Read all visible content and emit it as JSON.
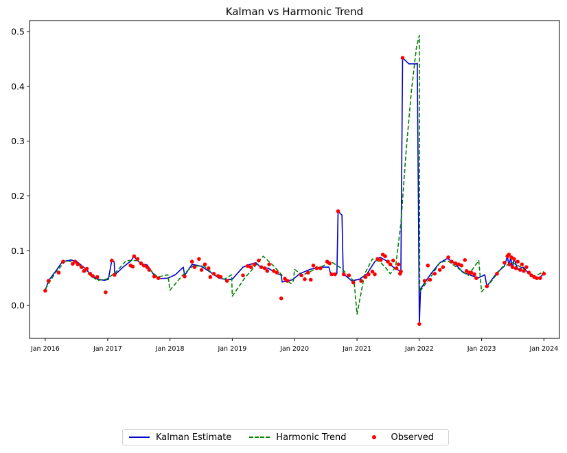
{
  "chart_data": {
    "type": "line",
    "title": "Kalman vs Harmonic Trend",
    "xlabel": "",
    "ylabel": "",
    "xlim": [
      "2015-10-01",
      "2024-04-01"
    ],
    "ylim": [
      -0.06,
      0.52
    ],
    "yticks": [
      0.0,
      0.1,
      0.2,
      0.3,
      0.4,
      0.5
    ],
    "ytick_labels": [
      "0.0",
      "0.1",
      "0.2",
      "0.3",
      "0.4",
      "0.5"
    ],
    "xticks": [
      "2016-01-01",
      "2017-01-01",
      "2018-01-01",
      "2019-01-01",
      "2020-01-01",
      "2021-01-01",
      "2022-01-01",
      "2023-01-01",
      "2024-01-01"
    ],
    "xtick_labels": [
      "Jan 2016",
      "Jan 2017",
      "Jan 2018",
      "Jan 2019",
      "Jan 2020",
      "Jan 2021",
      "Jan 2022",
      "Jan 2023",
      "Jan 2024"
    ],
    "grid": false,
    "legend_position": "bottom-center",
    "series": [
      {
        "name": "Kalman Estimate",
        "style": "solid",
        "color": "#0000cc",
        "points": [
          [
            "2016-01-01",
            0.027
          ],
          [
            "2016-01-20",
            0.045
          ],
          [
            "2016-03-15",
            0.068
          ],
          [
            "2016-04-10",
            0.08
          ],
          [
            "2016-06-01",
            0.083
          ],
          [
            "2016-07-05",
            0.08
          ],
          [
            "2016-08-20",
            0.068
          ],
          [
            "2016-09-20",
            0.058
          ],
          [
            "2016-11-01",
            0.048
          ],
          [
            "2016-12-15",
            0.046
          ],
          [
            "2017-01-05",
            0.048
          ],
          [
            "2017-01-25",
            0.082
          ],
          [
            "2017-02-08",
            0.08
          ],
          [
            "2017-02-12",
            0.056
          ],
          [
            "2017-04-01",
            0.07
          ],
          [
            "2017-05-20",
            0.082
          ],
          [
            "2017-06-01",
            0.09
          ],
          [
            "2017-07-15",
            0.076
          ],
          [
            "2017-08-20",
            0.074
          ],
          [
            "2017-10-01",
            0.055
          ],
          [
            "2017-11-01",
            0.049
          ],
          [
            "2017-12-20",
            0.05
          ],
          [
            "2018-02-01",
            0.056
          ],
          [
            "2018-03-20",
            0.07
          ],
          [
            "2018-03-28",
            0.055
          ],
          [
            "2018-05-10",
            0.075
          ],
          [
            "2018-07-01",
            0.072
          ],
          [
            "2018-08-20",
            0.062
          ],
          [
            "2018-10-15",
            0.05
          ],
          [
            "2018-12-01",
            0.047
          ],
          [
            "2019-01-01",
            0.048
          ],
          [
            "2019-03-05",
            0.07
          ],
          [
            "2019-04-15",
            0.075
          ],
          [
            "2019-05-20",
            0.078
          ],
          [
            "2019-06-15",
            0.07
          ],
          [
            "2019-08-01",
            0.068
          ],
          [
            "2019-09-10",
            0.06
          ],
          [
            "2019-10-15",
            0.055
          ],
          [
            "2019-10-20",
            0.043
          ],
          [
            "2019-12-20",
            0.047
          ],
          [
            "2020-02-01",
            0.058
          ],
          [
            "2020-04-01",
            0.066
          ],
          [
            "2020-06-01",
            0.07
          ],
          [
            "2020-07-20",
            0.07
          ],
          [
            "2020-08-01",
            0.056
          ],
          [
            "2020-09-05",
            0.058
          ],
          [
            "2020-09-12",
            0.172
          ],
          [
            "2020-10-05",
            0.165
          ],
          [
            "2020-10-12",
            0.058
          ],
          [
            "2020-12-01",
            0.045
          ],
          [
            "2021-01-15",
            0.048
          ],
          [
            "2021-03-01",
            0.058
          ],
          [
            "2021-04-15",
            0.08
          ],
          [
            "2021-05-15",
            0.088
          ],
          [
            "2021-06-20",
            0.082
          ],
          [
            "2021-08-01",
            0.07
          ],
          [
            "2021-09-15",
            0.062
          ],
          [
            "2021-09-25",
            0.452
          ],
          [
            "2021-11-01",
            0.441
          ],
          [
            "2021-12-15",
            0.441
          ],
          [
            "2021-12-20",
            0.442
          ],
          [
            "2022-01-01",
            -0.034
          ],
          [
            "2022-01-08",
            0.03
          ],
          [
            "2022-02-15",
            0.048
          ],
          [
            "2022-03-15",
            0.06
          ],
          [
            "2022-05-01",
            0.078
          ],
          [
            "2022-06-15",
            0.086
          ],
          [
            "2022-08-01",
            0.075
          ],
          [
            "2022-09-15",
            0.06
          ],
          [
            "2022-11-01",
            0.055
          ],
          [
            "2022-12-10",
            0.05
          ],
          [
            "2023-01-20",
            0.056
          ],
          [
            "2023-02-01",
            0.035
          ],
          [
            "2023-04-01",
            0.06
          ],
          [
            "2023-05-15",
            0.072
          ],
          [
            "2023-06-01",
            0.09
          ],
          [
            "2023-06-10",
            0.072
          ],
          [
            "2023-06-20",
            0.088
          ],
          [
            "2023-07-01",
            0.068
          ],
          [
            "2023-07-10",
            0.085
          ],
          [
            "2023-08-01",
            0.066
          ],
          [
            "2023-09-01",
            0.07
          ],
          [
            "2023-10-15",
            0.055
          ],
          [
            "2023-12-01",
            0.05
          ],
          [
            "2024-01-01",
            0.058
          ]
        ]
      },
      {
        "name": "Harmonic Trend",
        "style": "dashed",
        "color": "#008000",
        "points": [
          [
            "2016-01-01",
            0.03
          ],
          [
            "2016-03-01",
            0.06
          ],
          [
            "2016-05-01",
            0.082
          ],
          [
            "2016-07-01",
            0.078
          ],
          [
            "2016-09-01",
            0.06
          ],
          [
            "2016-11-01",
            0.046
          ],
          [
            "2016-12-25",
            0.048
          ],
          [
            "2017-02-15",
            0.06
          ],
          [
            "2017-04-20",
            0.082
          ],
          [
            "2017-06-20",
            0.082
          ],
          [
            "2017-08-20",
            0.07
          ],
          [
            "2017-10-20",
            0.052
          ],
          [
            "2017-12-20",
            0.056
          ],
          [
            "2018-01-01",
            0.028
          ],
          [
            "2018-03-15",
            0.055
          ],
          [
            "2018-05-15",
            0.072
          ],
          [
            "2018-07-20",
            0.072
          ],
          [
            "2018-09-20",
            0.055
          ],
          [
            "2018-11-15",
            0.048
          ],
          [
            "2018-12-28",
            0.056
          ],
          [
            "2019-01-01",
            0.017
          ],
          [
            "2019-03-15",
            0.05
          ],
          [
            "2019-05-15",
            0.072
          ],
          [
            "2019-07-01",
            0.09
          ],
          [
            "2019-09-01",
            0.072
          ],
          [
            "2019-10-20",
            0.055
          ],
          [
            "2019-12-10",
            0.04
          ],
          [
            "2019-12-25",
            0.045
          ],
          [
            "2020-01-01",
            0.066
          ],
          [
            "2020-02-15",
            0.055
          ],
          [
            "2020-04-01",
            0.062
          ],
          [
            "2020-06-15",
            0.072
          ],
          [
            "2020-08-01",
            0.08
          ],
          [
            "2020-10-01",
            0.068
          ],
          [
            "2020-12-15",
            0.044
          ],
          [
            "2021-01-01",
            -0.016
          ],
          [
            "2021-02-15",
            0.058
          ],
          [
            "2021-04-01",
            0.085
          ],
          [
            "2021-05-15",
            0.08
          ],
          [
            "2021-06-15",
            0.07
          ],
          [
            "2021-07-15",
            0.058
          ],
          [
            "2021-08-15",
            0.07
          ],
          [
            "2021-09-15",
            0.15
          ],
          [
            "2021-10-15",
            0.28
          ],
          [
            "2021-11-15",
            0.39
          ],
          [
            "2021-12-15",
            0.47
          ],
          [
            "2022-01-01",
            0.493
          ],
          [
            "2022-01-03",
            0.025
          ],
          [
            "2022-03-15",
            0.055
          ],
          [
            "2022-05-01",
            0.078
          ],
          [
            "2022-06-15",
            0.082
          ],
          [
            "2022-08-15",
            0.068
          ],
          [
            "2022-10-15",
            0.055
          ],
          [
            "2022-12-15",
            0.082
          ],
          [
            "2023-01-01",
            0.025
          ],
          [
            "2023-03-01",
            0.045
          ],
          [
            "2023-05-01",
            0.07
          ],
          [
            "2023-07-01",
            0.078
          ],
          [
            "2023-09-01",
            0.068
          ],
          [
            "2023-11-01",
            0.052
          ],
          [
            "2024-01-01",
            0.062
          ]
        ]
      },
      {
        "name": "Observed",
        "style": "markers",
        "color": "#ff0000",
        "points": [
          [
            "2016-01-01",
            0.027
          ],
          [
            "2016-01-20",
            0.045
          ],
          [
            "2016-03-20",
            0.06
          ],
          [
            "2016-04-15",
            0.08
          ],
          [
            "2016-06-10",
            0.076
          ],
          [
            "2016-06-25",
            0.08
          ],
          [
            "2016-07-10",
            0.075
          ],
          [
            "2016-08-01",
            0.07
          ],
          [
            "2016-08-15",
            0.063
          ],
          [
            "2016-09-01",
            0.067
          ],
          [
            "2016-09-20",
            0.058
          ],
          [
            "2016-10-05",
            0.054
          ],
          [
            "2016-11-01",
            0.052
          ],
          [
            "2016-12-20",
            0.024
          ],
          [
            "2017-01-25",
            0.082
          ],
          [
            "2017-02-10",
            0.056
          ],
          [
            "2017-05-15",
            0.073
          ],
          [
            "2017-05-28",
            0.071
          ],
          [
            "2017-06-05",
            0.09
          ],
          [
            "2017-06-25",
            0.085
          ],
          [
            "2017-07-15",
            0.077
          ],
          [
            "2017-08-01",
            0.073
          ],
          [
            "2017-08-20",
            0.07
          ],
          [
            "2017-09-01",
            0.065
          ],
          [
            "2017-10-01",
            0.053
          ],
          [
            "2017-10-25",
            0.05
          ],
          [
            "2018-03-28",
            0.053
          ],
          [
            "2018-05-10",
            0.08
          ],
          [
            "2018-05-25",
            0.07
          ],
          [
            "2018-06-20",
            0.085
          ],
          [
            "2018-07-05",
            0.065
          ],
          [
            "2018-07-25",
            0.075
          ],
          [
            "2018-08-15",
            0.068
          ],
          [
            "2018-08-25",
            0.052
          ],
          [
            "2018-09-15",
            0.058
          ],
          [
            "2018-10-10",
            0.054
          ],
          [
            "2018-10-25",
            0.052
          ],
          [
            "2018-12-01",
            0.045
          ],
          [
            "2019-03-05",
            0.055
          ],
          [
            "2019-04-01",
            0.072
          ],
          [
            "2019-04-20",
            0.07
          ],
          [
            "2019-05-10",
            0.075
          ],
          [
            "2019-06-05",
            0.082
          ],
          [
            "2019-06-20",
            0.07
          ],
          [
            "2019-07-10",
            0.068
          ],
          [
            "2019-07-25",
            0.063
          ],
          [
            "2019-08-05",
            0.075
          ],
          [
            "2019-09-01",
            0.063
          ],
          [
            "2019-09-20",
            0.06
          ],
          [
            "2019-10-15",
            0.013
          ],
          [
            "2019-11-05",
            0.049
          ],
          [
            "2019-11-20",
            0.045
          ],
          [
            "2020-02-10",
            0.055
          ],
          [
            "2020-03-01",
            0.048
          ],
          [
            "2020-03-20",
            0.06
          ],
          [
            "2020-04-05",
            0.047
          ],
          [
            "2020-04-20",
            0.073
          ],
          [
            "2020-05-10",
            0.068
          ],
          [
            "2020-06-01",
            0.068
          ],
          [
            "2020-07-10",
            0.08
          ],
          [
            "2020-07-25",
            0.077
          ],
          [
            "2020-08-05",
            0.057
          ],
          [
            "2020-08-25",
            0.057
          ],
          [
            "2020-09-12",
            0.172
          ],
          [
            "2020-10-15",
            0.057
          ],
          [
            "2020-11-15",
            0.055
          ],
          [
            "2020-12-10",
            0.042
          ],
          [
            "2021-01-25",
            0.045
          ],
          [
            "2021-02-20",
            0.052
          ],
          [
            "2021-03-10",
            0.057
          ],
          [
            "2021-04-01",
            0.062
          ],
          [
            "2021-04-15",
            0.057
          ],
          [
            "2021-05-01",
            0.085
          ],
          [
            "2021-05-20",
            0.083
          ],
          [
            "2021-06-01",
            0.093
          ],
          [
            "2021-06-15",
            0.09
          ],
          [
            "2021-07-01",
            0.08
          ],
          [
            "2021-07-15",
            0.075
          ],
          [
            "2021-08-01",
            0.082
          ],
          [
            "2021-08-20",
            0.068
          ],
          [
            "2021-09-01",
            0.075
          ],
          [
            "2021-09-10",
            0.058
          ],
          [
            "2021-09-15",
            0.062
          ],
          [
            "2021-09-25",
            0.452
          ],
          [
            "2022-01-01",
            -0.034
          ],
          [
            "2022-02-01",
            0.045
          ],
          [
            "2022-02-20",
            0.073
          ],
          [
            "2022-03-05",
            0.047
          ],
          [
            "2022-04-01",
            0.058
          ],
          [
            "2022-05-01",
            0.065
          ],
          [
            "2022-05-20",
            0.07
          ],
          [
            "2022-06-20",
            0.088
          ],
          [
            "2022-07-10",
            0.08
          ],
          [
            "2022-08-01",
            0.077
          ],
          [
            "2022-08-20",
            0.075
          ],
          [
            "2022-09-05",
            0.073
          ],
          [
            "2022-09-25",
            0.083
          ],
          [
            "2022-10-05",
            0.063
          ],
          [
            "2022-10-20",
            0.06
          ],
          [
            "2022-11-01",
            0.06
          ],
          [
            "2022-11-20",
            0.057
          ],
          [
            "2022-12-01",
            0.05
          ],
          [
            "2023-02-01",
            0.035
          ],
          [
            "2023-04-01",
            0.058
          ],
          [
            "2023-05-15",
            0.078
          ],
          [
            "2023-06-01",
            0.09
          ],
          [
            "2023-06-10",
            0.093
          ],
          [
            "2023-06-15",
            0.075
          ],
          [
            "2023-06-25",
            0.088
          ],
          [
            "2023-07-01",
            0.07
          ],
          [
            "2023-07-10",
            0.085
          ],
          [
            "2023-07-20",
            0.068
          ],
          [
            "2023-08-01",
            0.08
          ],
          [
            "2023-08-15",
            0.065
          ],
          [
            "2023-08-25",
            0.075
          ],
          [
            "2023-09-05",
            0.063
          ],
          [
            "2023-09-20",
            0.07
          ],
          [
            "2023-10-05",
            0.06
          ],
          [
            "2023-10-20",
            0.055
          ],
          [
            "2023-11-05",
            0.052
          ],
          [
            "2023-11-20",
            0.05
          ],
          [
            "2023-12-10",
            0.05
          ],
          [
            "2024-01-01",
            0.058
          ]
        ]
      }
    ]
  }
}
